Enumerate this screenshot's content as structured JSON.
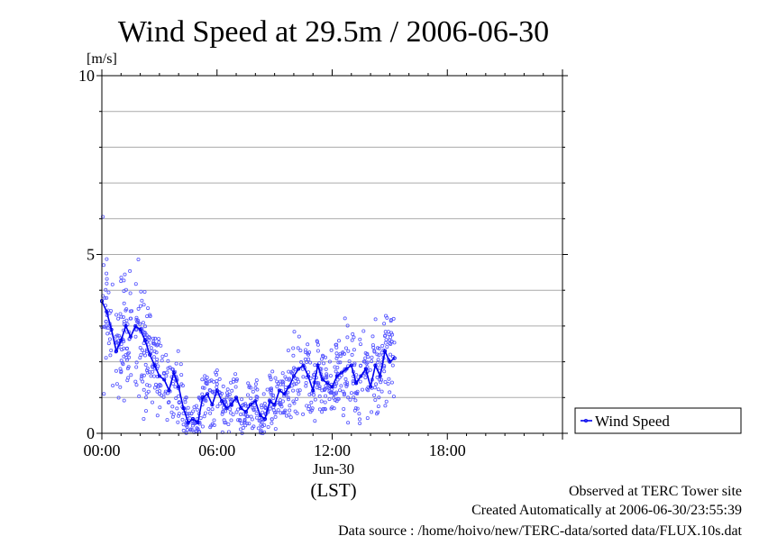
{
  "chart_data": {
    "type": "scatter",
    "title": "Wind Speed at 29.5m / 2006-06-30",
    "ylabel": "[m/s]",
    "xlabel": "(LST)",
    "date_label": "Jun-30",
    "ylim": [
      0,
      10
    ],
    "xlim": [
      "00:00",
      "24:00"
    ],
    "y_ticks": [
      0,
      5,
      10
    ],
    "y_tick_labels": [
      "0",
      "5",
      "10"
    ],
    "x_ticks": [
      "00:00",
      "06:00",
      "12:00",
      "18:00"
    ],
    "grid": "horizontal, every 1 m/s",
    "legend_position": "right",
    "series": [
      {
        "name": "Wind Speed",
        "color": "#0000ee",
        "x_hours": [
          0.0,
          0.25,
          0.5,
          0.75,
          1.0,
          1.25,
          1.5,
          1.75,
          2.0,
          2.25,
          2.5,
          2.75,
          3.0,
          3.25,
          3.5,
          3.75,
          4.0,
          4.25,
          4.5,
          4.75,
          5.0,
          5.25,
          5.5,
          5.75,
          6.0,
          6.25,
          6.5,
          6.75,
          7.0,
          7.25,
          7.5,
          7.75,
          8.0,
          8.25,
          8.5,
          8.75,
          9.0,
          9.25,
          9.5,
          9.75,
          10.0,
          10.25,
          10.5,
          10.75,
          11.0,
          11.25,
          11.5,
          11.75,
          12.0,
          12.25,
          12.5,
          12.75,
          13.0,
          13.25,
          13.5,
          13.75,
          14.0,
          14.25,
          14.5,
          14.75,
          15.0,
          15.25
        ],
        "values": [
          3.7,
          3.4,
          2.9,
          2.3,
          2.6,
          3.0,
          2.7,
          3.0,
          2.9,
          2.6,
          2.2,
          1.9,
          1.6,
          1.5,
          1.2,
          1.7,
          1.3,
          0.7,
          0.3,
          0.4,
          0.3,
          1.0,
          1.1,
          0.8,
          1.2,
          0.9,
          0.7,
          0.8,
          1.0,
          0.7,
          0.6,
          0.8,
          0.9,
          0.5,
          0.4,
          0.9,
          0.8,
          1.2,
          1.1,
          1.3,
          1.6,
          1.8,
          1.9,
          1.6,
          1.2,
          1.9,
          1.5,
          1.4,
          1.3,
          1.6,
          1.7,
          1.8,
          1.9,
          1.4,
          1.6,
          1.8,
          1.3,
          1.9,
          1.6,
          2.3,
          2.0,
          2.1
        ]
      }
    ]
  },
  "footer": {
    "line1": "Observed at TERC Tower site",
    "line2": "Created Automatically at 2006-06-30/23:55:39",
    "line3": "Data source : /home/hoivo/new/TERC-data/sorted  data/FLUX.10s.dat"
  }
}
